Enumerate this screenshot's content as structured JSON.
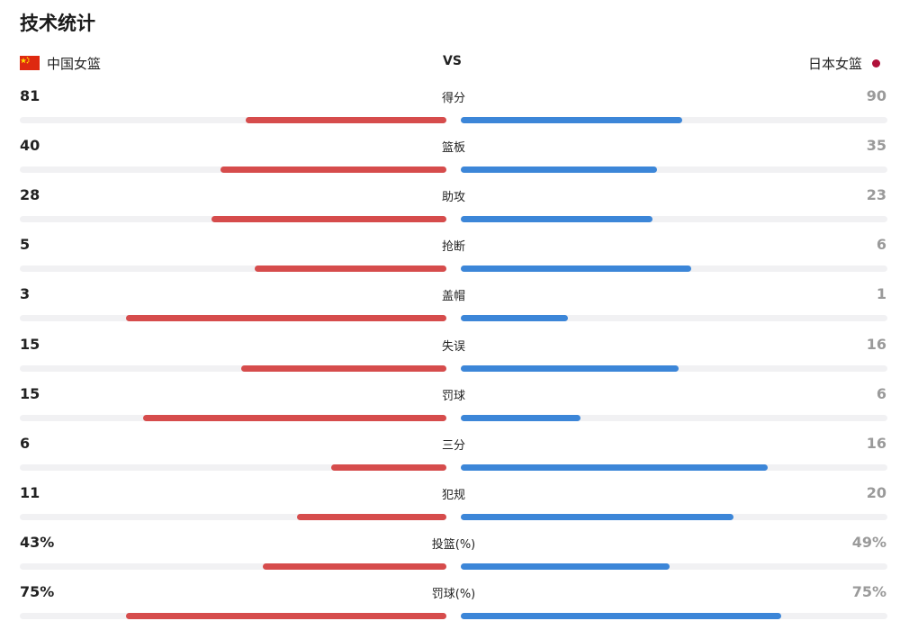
{
  "title": "技术统计",
  "teams": {
    "home": "中国女篮",
    "vs": "VS",
    "away": "日本女篮"
  },
  "colors": {
    "home_bar": "#d64c4c",
    "away_bar": "#3c86d8",
    "track": "#f1f1f3"
  },
  "stats": [
    {
      "label": "得分",
      "home": "81",
      "away": "90",
      "home_fill": 0.47,
      "away_fill": 0.52
    },
    {
      "label": "篮板",
      "home": "40",
      "away": "35",
      "home_fill": 0.53,
      "away_fill": 0.46
    },
    {
      "label": "助攻",
      "home": "28",
      "away": "23",
      "home_fill": 0.55,
      "away_fill": 0.45
    },
    {
      "label": "抢断",
      "home": "5",
      "away": "6",
      "home_fill": 0.45,
      "away_fill": 0.54
    },
    {
      "label": "盖帽",
      "home": "3",
      "away": "1",
      "home_fill": 0.75,
      "away_fill": 0.25
    },
    {
      "label": "失误",
      "home": "15",
      "away": "16",
      "home_fill": 0.48,
      "away_fill": 0.51
    },
    {
      "label": "罚球",
      "home": "15",
      "away": "6",
      "home_fill": 0.71,
      "away_fill": 0.28
    },
    {
      "label": "三分",
      "home": "6",
      "away": "16",
      "home_fill": 0.27,
      "away_fill": 0.72
    },
    {
      "label": "犯规",
      "home": "11",
      "away": "20",
      "home_fill": 0.35,
      "away_fill": 0.64
    },
    {
      "label": "投篮(%)",
      "home": "43%",
      "away": "49%",
      "home_fill": 0.43,
      "away_fill": 0.49
    },
    {
      "label": "罚球(%)",
      "home": "75%",
      "away": "75%",
      "home_fill": 0.75,
      "away_fill": 0.75
    }
  ]
}
